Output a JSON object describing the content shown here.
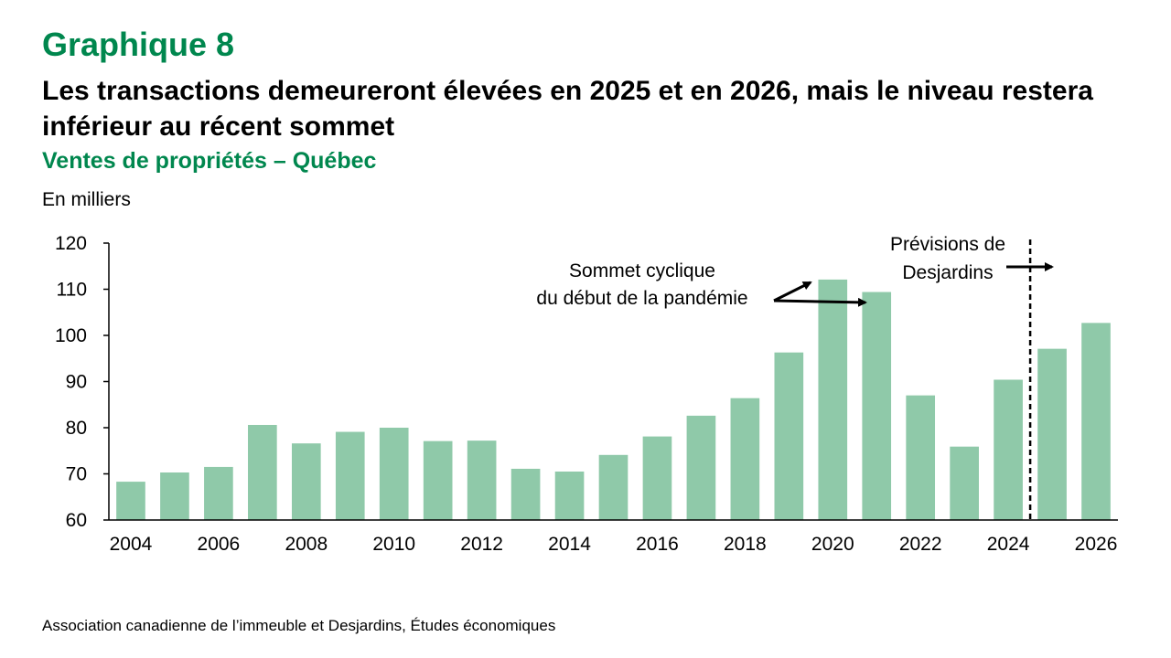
{
  "header": {
    "graph_label": "Graphique 8",
    "title": "Les transactions demeureront élevées en 2025 et en 2026, mais le niveau restera inférieur au récent sommet",
    "subtitle": "Ventes de propriétés – Québec",
    "unit_label": "En milliers"
  },
  "footer": {
    "source": "Association canadienne de l’immeuble et Desjardins, Études économiques"
  },
  "colors": {
    "accent": "#00874E",
    "bar": "#8FC9A9",
    "axis": "#000000"
  },
  "chart_data": {
    "type": "bar",
    "categories": [
      "2004",
      "2005",
      "2006",
      "2007",
      "2008",
      "2009",
      "2010",
      "2011",
      "2012",
      "2013",
      "2014",
      "2015",
      "2016",
      "2017",
      "2018",
      "2019",
      "2020",
      "2021",
      "2022",
      "2023",
      "2024",
      "2025",
      "2026"
    ],
    "values": [
      68.3,
      70.3,
      71.5,
      80.6,
      76.6,
      79.1,
      80.0,
      77.1,
      77.2,
      71.1,
      70.5,
      74.1,
      78.1,
      82.6,
      86.4,
      96.3,
      112.1,
      109.4,
      87.0,
      75.9,
      90.4,
      97.1,
      102.7
    ],
    "x_tick_labels": [
      "2004",
      "2006",
      "2008",
      "2010",
      "2012",
      "2014",
      "2016",
      "2018",
      "2020",
      "2022",
      "2024",
      "2026"
    ],
    "y_ticks": [
      60,
      70,
      80,
      90,
      100,
      110,
      120
    ],
    "ylim": [
      60,
      120
    ],
    "ylabel": "En milliers",
    "xlabel": "",
    "grid": false,
    "annotations": {
      "peak_line1": "Sommet cyclique",
      "peak_line2": "du début de la pandémie",
      "forecast_line1": "Prévisions de",
      "forecast_line2": "Desjardins"
    },
    "forecast_start": "2025"
  }
}
